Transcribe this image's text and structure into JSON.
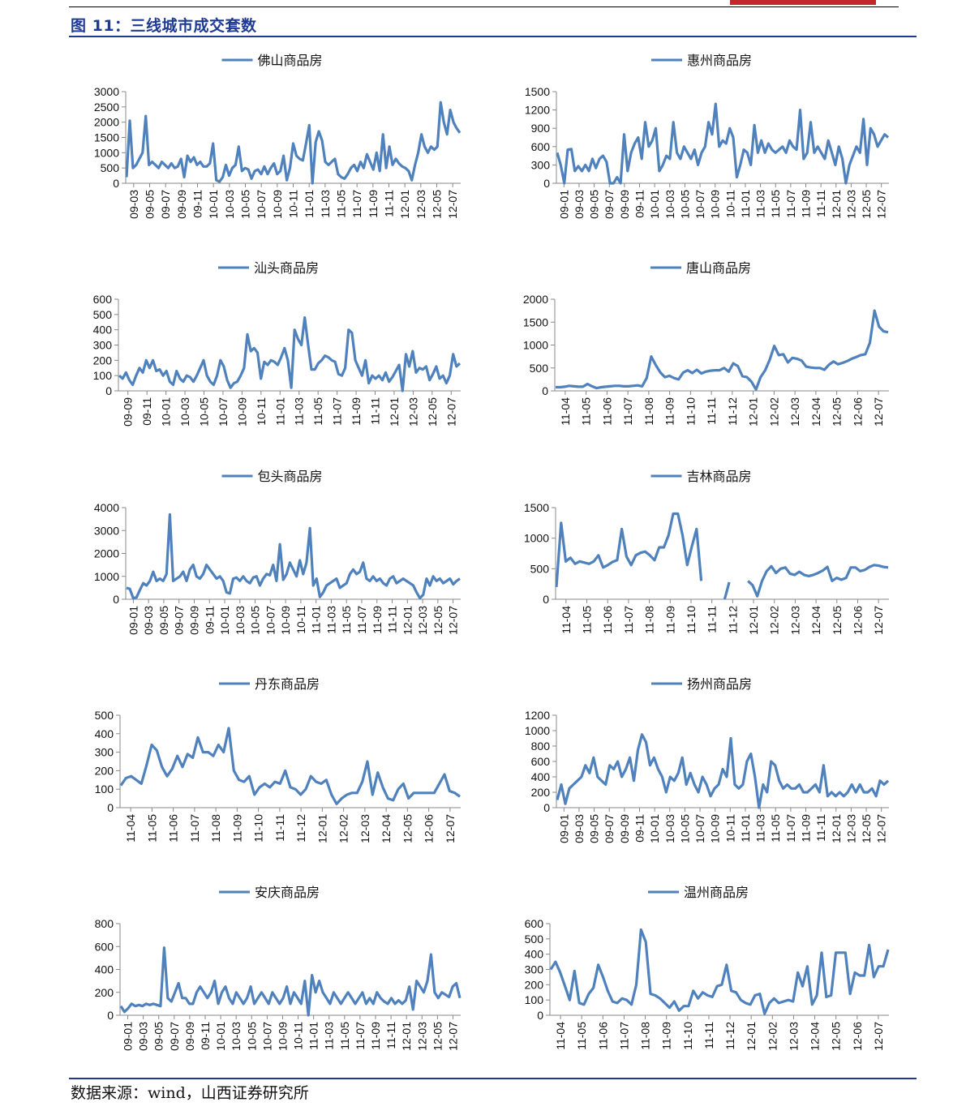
{
  "page": {
    "figure_title": "图 11：三线城市成交套数",
    "source": "数据来源：wind，山西证券研究所",
    "line_color": "#4f81bd",
    "title_color": "#1f3a93",
    "header_mark_color": "#c0282d"
  },
  "chart_data": [
    {
      "type": "line",
      "series_name": "佛山商品房",
      "y_ticks": [
        0,
        500,
        1000,
        1500,
        2000,
        2500,
        3000
      ],
      "ylim": [
        0,
        3000
      ],
      "x_ticks": [
        "09-03",
        "09-05",
        "09-07",
        "09-09",
        "09-11",
        "10-01",
        "10-03",
        "10-05",
        "10-07",
        "10-09",
        "10-11",
        "11-01",
        "11-03",
        "11-05",
        "11-07",
        "11-09",
        "11-11",
        "12-01",
        "12-03",
        "12-05",
        "12-07"
      ],
      "values": [
        200,
        2050,
        500,
        600,
        800,
        1000,
        2200,
        600,
        700,
        600,
        500,
        700,
        600,
        500,
        650,
        500,
        550,
        800,
        200,
        900,
        700,
        850,
        600,
        700,
        550,
        550,
        650,
        1300,
        100,
        50,
        200,
        600,
        250,
        500,
        600,
        1200,
        400,
        500,
        450,
        150,
        400,
        450,
        300,
        550,
        300,
        500,
        650,
        300,
        400,
        900,
        100,
        500,
        1300,
        900,
        800,
        750,
        1300,
        1900,
        0,
        1350,
        1700,
        1400,
        700,
        600,
        700,
        800,
        300,
        200,
        150,
        300,
        500,
        600,
        400,
        700,
        500,
        950,
        700,
        450,
        1000,
        400,
        1600,
        500,
        1200,
        600,
        800,
        650,
        550,
        500,
        400,
        100,
        600,
        1000,
        1600,
        1200,
        1000,
        1200,
        1100,
        1200,
        2650,
        2000,
        1600,
        2400,
        2000,
        1800,
        1650
      ],
      "missing": []
    },
    {
      "type": "line",
      "series_name": "惠州商品房",
      "y_ticks": [
        0,
        300,
        600,
        900,
        1200,
        1500
      ],
      "ylim": [
        0,
        1500
      ],
      "x_ticks": [
        "09-01",
        "09-03",
        "09-05",
        "09-07",
        "09-09",
        "09-11",
        "10-01",
        "10-03",
        "10-05",
        "10-07",
        "10-09",
        "10-11",
        "11-01",
        "11-03",
        "11-05",
        "11-07",
        "11-09",
        "11-11",
        "12-01",
        "12-03",
        "12-05",
        "12-07"
      ],
      "values": [
        500,
        300,
        0,
        550,
        560,
        200,
        280,
        200,
        300,
        200,
        400,
        250,
        400,
        450,
        350,
        0,
        0,
        100,
        0,
        800,
        200,
        500,
        650,
        750,
        400,
        1000,
        600,
        700,
        900,
        200,
        300,
        450,
        400,
        1000,
        500,
        400,
        600,
        500,
        400,
        550,
        300,
        500,
        600,
        1000,
        800,
        1300,
        600,
        700,
        650,
        900,
        750,
        100,
        300,
        550,
        500,
        300,
        950,
        500,
        700,
        500,
        650,
        550,
        500,
        550,
        600,
        500,
        700,
        600,
        550,
        1200,
        400,
        500,
        1000,
        500,
        600,
        500,
        400,
        700,
        500,
        300,
        600,
        400,
        0,
        300,
        450,
        600,
        500,
        1050,
        300,
        900,
        800,
        600,
        700,
        800,
        750
      ],
      "missing": []
    },
    {
      "type": "line",
      "series_name": "汕头商品房",
      "y_ticks": [
        0,
        100,
        200,
        300,
        400,
        500,
        600
      ],
      "ylim": [
        0,
        600
      ],
      "x_ticks": [
        "09-09",
        "09-11",
        "10-01",
        "10-03",
        "10-05",
        "10-07",
        "10-09",
        "10-11",
        "11-01",
        "11-03",
        "11-05",
        "11-07",
        "11-09",
        "11-11",
        "12-01",
        "12-03",
        "12-05",
        "12-07"
      ],
      "values": [
        100,
        80,
        120,
        70,
        40,
        100,
        150,
        120,
        200,
        150,
        200,
        130,
        140,
        100,
        130,
        60,
        40,
        130,
        80,
        60,
        100,
        90,
        60,
        100,
        150,
        200,
        100,
        60,
        40,
        100,
        200,
        160,
        70,
        20,
        50,
        60,
        100,
        150,
        370,
        260,
        280,
        250,
        80,
        190,
        170,
        200,
        190,
        170,
        220,
        280,
        200,
        20,
        400,
        340,
        300,
        480,
        300,
        140,
        140,
        180,
        200,
        230,
        220,
        200,
        190,
        110,
        100,
        150,
        400,
        380,
        200,
        150,
        100,
        200,
        50,
        100,
        80,
        100,
        70,
        120,
        60,
        90,
        130,
        170,
        0,
        240,
        160,
        260,
        120,
        150,
        140,
        160,
        70,
        110,
        160,
        80,
        100,
        50,
        100,
        240,
        160,
        180
      ],
      "missing": []
    },
    {
      "type": "line",
      "series_name": "唐山商品房",
      "y_ticks": [
        0,
        500,
        1000,
        1500,
        2000
      ],
      "ylim": [
        0,
        2000
      ],
      "x_ticks": [
        "11-04",
        "11-05",
        "11-06",
        "11-07",
        "11-08",
        "11-09",
        "11-10",
        "11-11",
        "11-12",
        "12-01",
        "12-02",
        "12-03",
        "12-04",
        "12-05",
        "12-06",
        "12-07"
      ],
      "values": [
        80,
        80,
        90,
        110,
        100,
        90,
        90,
        150,
        100,
        60,
        80,
        90,
        100,
        110,
        110,
        100,
        100,
        110,
        120,
        100,
        280,
        750,
        560,
        400,
        300,
        330,
        280,
        250,
        400,
        450,
        390,
        460,
        380,
        420,
        440,
        450,
        450,
        500,
        420,
        600,
        540,
        320,
        300,
        200,
        30,
        300,
        450,
        680,
        980,
        780,
        800,
        620,
        720,
        700,
        660,
        530,
        510,
        500,
        500,
        460,
        570,
        640,
        580,
        610,
        650,
        700,
        740,
        780,
        800,
        1050,
        1750,
        1400,
        1300,
        1280
      ],
      "missing": []
    },
    {
      "type": "line",
      "series_name": "包头商品房",
      "y_ticks": [
        0,
        1000,
        2000,
        3000,
        4000
      ],
      "ylim": [
        0,
        4000
      ],
      "x_ticks": [
        "09-01",
        "09-03",
        "09-05",
        "09-07",
        "09-09",
        "09-11",
        "10-01",
        "10-03",
        "10-05",
        "10-07",
        "10-09",
        "10-11",
        "11-01",
        "11-03",
        "11-05",
        "11-07",
        "11-09",
        "11-11",
        "12-01",
        "12-03",
        "12-05",
        "12-07"
      ],
      "values": [
        500,
        450,
        50,
        80,
        400,
        700,
        600,
        800,
        1200,
        800,
        900,
        800,
        1100,
        3700,
        800,
        900,
        1000,
        1200,
        800,
        1300,
        1500,
        1000,
        900,
        1100,
        1500,
        1300,
        1100,
        900,
        1000,
        800,
        300,
        250,
        900,
        950,
        800,
        1000,
        800,
        700,
        950,
        1000,
        600,
        900,
        1100,
        1050,
        1500,
        800,
        2400,
        850,
        1100,
        1600,
        1300,
        1000,
        1700,
        1100,
        1600,
        3100,
        600,
        900,
        100,
        300,
        600,
        700,
        800,
        900,
        500,
        600,
        700,
        1100,
        1300,
        1100,
        1200,
        1600,
        900,
        800,
        1000,
        800,
        900,
        700,
        600,
        900,
        1000,
        700,
        800,
        900,
        800,
        700,
        600,
        300,
        50,
        200,
        900,
        600,
        1000,
        800,
        900,
        700,
        800,
        900,
        650,
        800,
        900
      ],
      "missing": []
    },
    {
      "type": "line",
      "series_name": "吉林商品房",
      "y_ticks": [
        0,
        500,
        1000,
        1500
      ],
      "ylim": [
        0,
        1500
      ],
      "x_ticks": [
        "11-04",
        "11-05",
        "11-06",
        "11-07",
        "11-08",
        "11-09",
        "11-10",
        "11-11",
        "11-12",
        "12-01",
        "12-02",
        "12-03",
        "12-04",
        "12-05",
        "12-06",
        "12-07"
      ],
      "values": [
        200,
        1250,
        620,
        680,
        580,
        620,
        600,
        580,
        620,
        720,
        520,
        560,
        610,
        640,
        1150,
        700,
        560,
        720,
        760,
        780,
        720,
        640,
        850,
        850,
        1050,
        1400,
        1400,
        1050,
        560,
        870,
        1150,
        300,
        null,
        null,
        null,
        null,
        0,
        280,
        null,
        null,
        null,
        300,
        230,
        50,
        300,
        460,
        540,
        430,
        500,
        520,
        420,
        400,
        450,
        400,
        380,
        400,
        430,
        470,
        530,
        300,
        350,
        320,
        350,
        520,
        520,
        460,
        480,
        530,
        560,
        550,
        530,
        520
      ],
      "missing": "null values = gaps"
    },
    {
      "type": "line",
      "series_name": "丹东商品房",
      "y_ticks": [
        0,
        100,
        200,
        300,
        400,
        500
      ],
      "ylim": [
        0,
        500
      ],
      "x_ticks": [
        "11-04",
        "11-05",
        "11-06",
        "11-07",
        "11-08",
        "11-09",
        "11-10",
        "11-11",
        "11-12",
        "12-01",
        "12-02",
        "12-03",
        "12-04",
        "12-05",
        "12-06",
        "12-07"
      ],
      "values": [
        120,
        160,
        170,
        150,
        130,
        230,
        340,
        310,
        220,
        170,
        210,
        280,
        220,
        290,
        270,
        380,
        300,
        300,
        280,
        340,
        300,
        430,
        200,
        150,
        140,
        170,
        70,
        110,
        130,
        110,
        140,
        130,
        200,
        110,
        100,
        70,
        100,
        170,
        140,
        130,
        150,
        70,
        20,
        50,
        70,
        80,
        80,
        140,
        250,
        70,
        190,
        110,
        50,
        40,
        100,
        130,
        50,
        80,
        80,
        80,
        80,
        80,
        130,
        180,
        90,
        80,
        60
      ],
      "missing": []
    },
    {
      "type": "line",
      "series_name": "扬州商品房",
      "y_ticks": [
        0,
        200,
        400,
        600,
        800,
        1000,
        1200
      ],
      "ylim": [
        0,
        1200
      ],
      "x_ticks": [
        "09-01",
        "09-03",
        "09-05",
        "09-07",
        "09-09",
        "09-11",
        "10-01",
        "10-03",
        "10-05",
        "10-07",
        "10-09",
        "10-11",
        "11-01",
        "11-03",
        "11-05",
        "11-07",
        "11-09",
        "11-11",
        "12-01",
        "12-03",
        "12-05",
        "12-07"
      ],
      "values": [
        100,
        300,
        50,
        250,
        300,
        350,
        400,
        550,
        450,
        650,
        400,
        350,
        300,
        550,
        500,
        600,
        400,
        500,
        650,
        350,
        750,
        950,
        850,
        550,
        650,
        500,
        400,
        200,
        400,
        350,
        450,
        650,
        300,
        450,
        300,
        200,
        400,
        300,
        150,
        250,
        300,
        500,
        400,
        900,
        300,
        250,
        300,
        600,
        700,
        400,
        0,
        300,
        200,
        600,
        550,
        350,
        250,
        300,
        250,
        250,
        300,
        200,
        200,
        250,
        300,
        200,
        550,
        150,
        200,
        150,
        200,
        150,
        200,
        300,
        200,
        300,
        200,
        200,
        250,
        150,
        350,
        300,
        350
      ],
      "missing": []
    },
    {
      "type": "line",
      "series_name": "安庆商品房",
      "y_ticks": [
        0,
        200,
        400,
        600,
        800
      ],
      "ylim": [
        0,
        800
      ],
      "x_ticks": [
        "09-01",
        "09-03",
        "09-05",
        "09-07",
        "09-09",
        "09-11",
        "10-01",
        "10-03",
        "10-05",
        "10-07",
        "10-09",
        "10-11",
        "11-01",
        "11-03",
        "11-05",
        "11-07",
        "11-09",
        "11-11",
        "12-01",
        "12-03",
        "12-05",
        "12-07"
      ],
      "values": [
        80,
        30,
        60,
        100,
        80,
        90,
        80,
        100,
        90,
        100,
        90,
        80,
        590,
        150,
        120,
        200,
        280,
        150,
        150,
        100,
        100,
        200,
        250,
        200,
        150,
        200,
        300,
        100,
        200,
        250,
        150,
        100,
        200,
        150,
        100,
        150,
        250,
        100,
        150,
        200,
        150,
        100,
        200,
        150,
        100,
        150,
        250,
        100,
        200,
        150,
        100,
        300,
        0,
        350,
        200,
        300,
        200,
        150,
        100,
        200,
        150,
        100,
        150,
        200,
        150,
        100,
        150,
        200,
        100,
        150,
        100,
        200,
        150,
        120,
        100,
        150,
        100,
        130,
        100,
        130,
        250,
        50,
        300,
        250,
        200,
        300,
        530,
        200,
        150,
        200,
        180,
        160,
        250,
        280,
        150
      ],
      "missing": []
    },
    {
      "type": "line",
      "series_name": "温州商品房",
      "y_ticks": [
        0,
        100,
        200,
        300,
        400,
        500,
        600
      ],
      "ylim": [
        0,
        600
      ],
      "x_ticks": [
        "11-04",
        "11-05",
        "11-06",
        "11-07",
        "11-08",
        "11-09",
        "11-10",
        "11-11",
        "11-12",
        "12-01",
        "12-02",
        "12-03",
        "12-04",
        "12-05",
        "12-06",
        "12-07"
      ],
      "values": [
        300,
        350,
        280,
        190,
        100,
        290,
        80,
        70,
        140,
        180,
        330,
        250,
        160,
        90,
        80,
        110,
        100,
        70,
        200,
        560,
        480,
        140,
        130,
        110,
        80,
        50,
        90,
        30,
        60,
        60,
        160,
        110,
        150,
        130,
        120,
        190,
        200,
        330,
        160,
        150,
        100,
        80,
        70,
        130,
        140,
        10,
        80,
        110,
        80,
        90,
        100,
        90,
        280,
        190,
        320,
        70,
        130,
        410,
        120,
        130,
        410,
        410,
        410,
        140,
        280,
        260,
        260,
        460,
        250,
        320,
        320,
        430
      ],
      "missing": []
    }
  ]
}
